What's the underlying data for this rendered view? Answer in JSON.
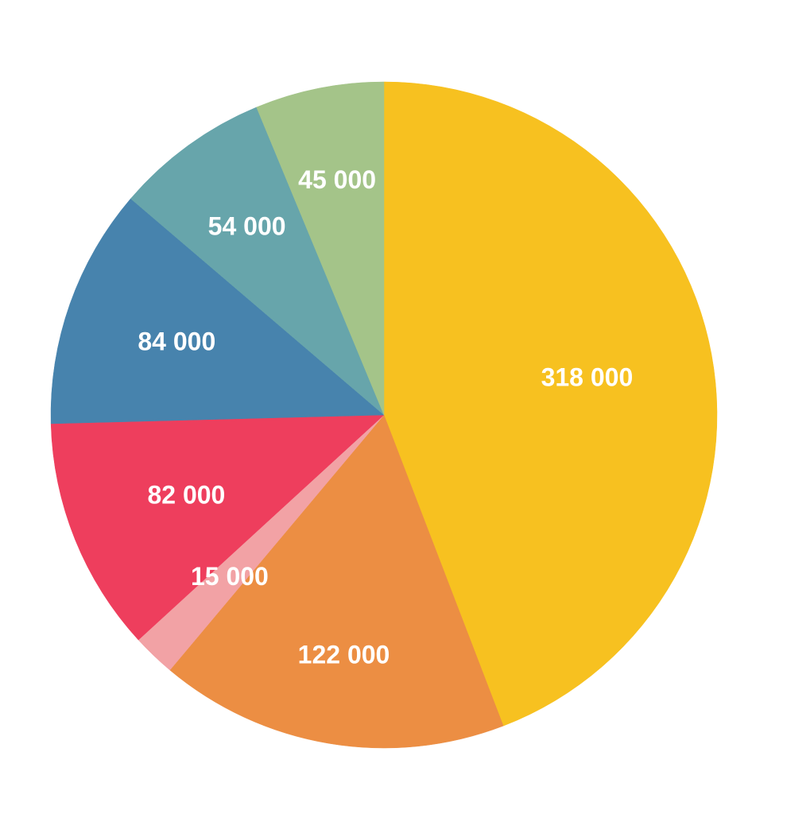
{
  "chart_data": {
    "type": "pie",
    "slices": [
      {
        "label": "318 000",
        "value": 318000,
        "color": "#F7C120"
      },
      {
        "label": "122 000",
        "value": 122000,
        "color": "#EC8E43"
      },
      {
        "label": "15 000",
        "value": 15000,
        "color": "#F2A2A5"
      },
      {
        "label": "82 000",
        "value": 82000,
        "color": "#EE3E5D"
      },
      {
        "label": "84 000",
        "value": 84000,
        "color": "#4783AD"
      },
      {
        "label": "54 000",
        "value": 54000,
        "color": "#67A5AB"
      },
      {
        "label": "45 000",
        "value": 45000,
        "color": "#A4C489"
      }
    ],
    "start_angle": "12 o'clock",
    "direction": "clockwise",
    "data_labels": "inside slices"
  }
}
